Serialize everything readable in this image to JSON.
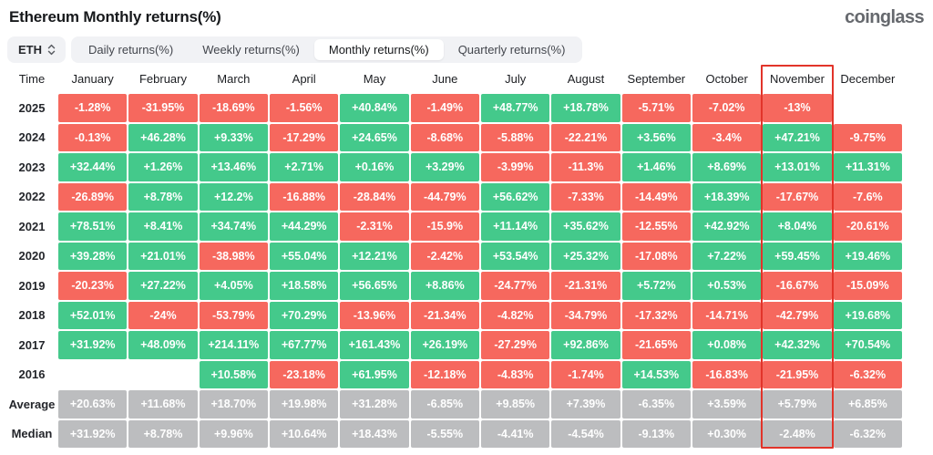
{
  "header": {
    "title": "Ethereum Monthly returns(%)",
    "logo": "coinglass"
  },
  "controls": {
    "symbol_select": {
      "value": "ETH"
    },
    "tabs": [
      {
        "label": "Daily returns(%)",
        "active": false
      },
      {
        "label": "Weekly returns(%)",
        "active": false
      },
      {
        "label": "Monthly returns(%)",
        "active": true
      },
      {
        "label": "Quarterly returns(%)",
        "active": false
      }
    ]
  },
  "colors": {
    "positive": "#44c98b",
    "negative": "#f6685e",
    "neutral": "#bcbdbf",
    "highlight_border": "#e2342a"
  },
  "table": {
    "time_header": "Time",
    "columns": [
      "January",
      "February",
      "March",
      "April",
      "May",
      "June",
      "July",
      "August",
      "September",
      "October",
      "November",
      "December"
    ],
    "highlighted_column": "November",
    "rows": [
      {
        "time": "2025",
        "kind": "year",
        "values": [
          "-1.28%",
          "-31.95%",
          "-18.69%",
          "-1.56%",
          "+40.84%",
          "-1.49%",
          "+48.77%",
          "+18.78%",
          "-5.71%",
          "-7.02%",
          "-13%",
          ""
        ]
      },
      {
        "time": "2024",
        "kind": "year",
        "values": [
          "-0.13%",
          "+46.28%",
          "+9.33%",
          "-17.29%",
          "+24.65%",
          "-8.68%",
          "-5.88%",
          "-22.21%",
          "+3.56%",
          "-3.4%",
          "+47.21%",
          "-9.75%"
        ]
      },
      {
        "time": "2023",
        "kind": "year",
        "values": [
          "+32.44%",
          "+1.26%",
          "+13.46%",
          "+2.71%",
          "+0.16%",
          "+3.29%",
          "-3.99%",
          "-11.3%",
          "+1.46%",
          "+8.69%",
          "+13.01%",
          "+11.31%"
        ]
      },
      {
        "time": "2022",
        "kind": "year",
        "values": [
          "-26.89%",
          "+8.78%",
          "+12.2%",
          "-16.88%",
          "-28.84%",
          "-44.79%",
          "+56.62%",
          "-7.33%",
          "-14.49%",
          "+18.39%",
          "-17.67%",
          "-7.6%"
        ]
      },
      {
        "time": "2021",
        "kind": "year",
        "values": [
          "+78.51%",
          "+8.41%",
          "+34.74%",
          "+44.29%",
          "-2.31%",
          "-15.9%",
          "+11.14%",
          "+35.62%",
          "-12.55%",
          "+42.92%",
          "+8.04%",
          "-20.61%"
        ]
      },
      {
        "time": "2020",
        "kind": "year",
        "values": [
          "+39.28%",
          "+21.01%",
          "-38.98%",
          "+55.04%",
          "+12.21%",
          "-2.42%",
          "+53.54%",
          "+25.32%",
          "-17.08%",
          "+7.22%",
          "+59.45%",
          "+19.46%"
        ]
      },
      {
        "time": "2019",
        "kind": "year",
        "values": [
          "-20.23%",
          "+27.22%",
          "+4.05%",
          "+18.58%",
          "+56.65%",
          "+8.86%",
          "-24.77%",
          "-21.31%",
          "+5.72%",
          "+0.53%",
          "-16.67%",
          "-15.09%"
        ]
      },
      {
        "time": "2018",
        "kind": "year",
        "values": [
          "+52.01%",
          "-24%",
          "-53.79%",
          "+70.29%",
          "-13.96%",
          "-21.34%",
          "-4.82%",
          "-34.79%",
          "-17.32%",
          "-14.71%",
          "-42.79%",
          "+19.68%"
        ]
      },
      {
        "time": "2017",
        "kind": "year",
        "values": [
          "+31.92%",
          "+48.09%",
          "+214.11%",
          "+67.77%",
          "+161.43%",
          "+26.19%",
          "-27.29%",
          "+92.86%",
          "-21.65%",
          "+0.08%",
          "+42.32%",
          "+70.54%"
        ]
      },
      {
        "time": "2016",
        "kind": "year",
        "values": [
          "",
          "",
          "+10.58%",
          "-23.18%",
          "+61.95%",
          "-12.18%",
          "-4.83%",
          "-1.74%",
          "+14.53%",
          "-16.83%",
          "-21.95%",
          "-6.32%"
        ]
      },
      {
        "time": "Average",
        "kind": "stat",
        "values": [
          "+20.63%",
          "+11.68%",
          "+18.70%",
          "+19.98%",
          "+31.28%",
          "-6.85%",
          "+9.85%",
          "+7.39%",
          "-6.35%",
          "+3.59%",
          "+5.79%",
          "+6.85%"
        ]
      },
      {
        "time": "Median",
        "kind": "stat",
        "values": [
          "+31.92%",
          "+8.78%",
          "+9.96%",
          "+10.64%",
          "+18.43%",
          "-5.55%",
          "-4.41%",
          "-4.54%",
          "-9.13%",
          "+0.30%",
          "-2.48%",
          "-6.32%"
        ]
      }
    ]
  }
}
